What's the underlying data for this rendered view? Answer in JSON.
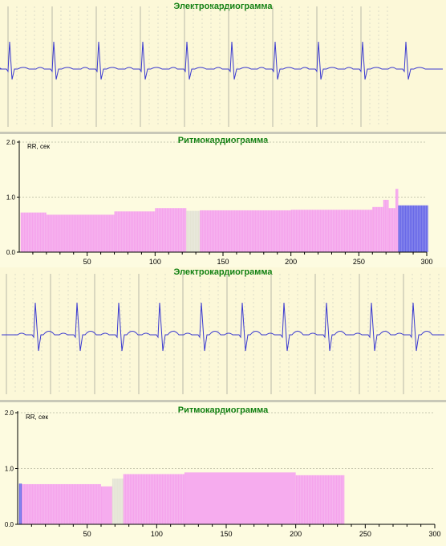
{
  "ecg1": {
    "title": "Электрокардиограмма"
  },
  "rhythm1": {
    "title": "Ритмокардиограмма"
  },
  "ecg2": {
    "title": "Электрокардиограмма"
  },
  "rhythm2": {
    "title": "Ритмокардиограмма"
  },
  "colors": {
    "ecg_trace": "#3a3ad0",
    "bar_normal": "#f5a4ec",
    "bar_artifact": "#e4e4d4",
    "bar_blue": "#6a6ae8",
    "title_green": "#118011"
  },
  "chart_data": [
    {
      "type": "bar",
      "title": "Ритмокардиограмма",
      "ylabel": "RR, сек",
      "ylim": [
        0,
        2.0
      ],
      "xlim": [
        0,
        300
      ],
      "y_ticks": [
        "0.0",
        "1.0",
        "2.0"
      ],
      "x_ticks": [
        "50",
        "100",
        "150",
        "200",
        "250",
        "300"
      ],
      "segments": [
        {
          "from": 1,
          "to": 20,
          "value": 0.72,
          "kind": "normal"
        },
        {
          "from": 20,
          "to": 70,
          "value": 0.68,
          "kind": "normal"
        },
        {
          "from": 70,
          "to": 100,
          "value": 0.74,
          "kind": "normal"
        },
        {
          "from": 100,
          "to": 123,
          "value": 0.8,
          "kind": "normal"
        },
        {
          "from": 123,
          "to": 133,
          "value": 0.75,
          "kind": "artifact"
        },
        {
          "from": 133,
          "to": 200,
          "value": 0.76,
          "kind": "normal"
        },
        {
          "from": 200,
          "to": 260,
          "value": 0.77,
          "kind": "normal"
        },
        {
          "from": 260,
          "to": 268,
          "value": 0.82,
          "kind": "normal"
        },
        {
          "from": 268,
          "to": 272,
          "value": 0.95,
          "kind": "normal"
        },
        {
          "from": 272,
          "to": 277,
          "value": 0.8,
          "kind": "normal"
        },
        {
          "from": 277,
          "to": 279,
          "value": 1.15,
          "kind": "normal"
        },
        {
          "from": 279,
          "to": 301,
          "value": 0.85,
          "kind": "blue"
        }
      ]
    },
    {
      "type": "bar",
      "title": "Ритмокардиограмма",
      "ylabel": "RR, сек",
      "ylim": [
        0,
        2.0
      ],
      "xlim": [
        0,
        300
      ],
      "y_ticks": [
        "0.0",
        "1.0",
        "2.0"
      ],
      "x_ticks": [
        "50",
        "100",
        "150",
        "200",
        "250",
        "300"
      ],
      "segments": [
        {
          "from": 1,
          "to": 3,
          "value": 0.73,
          "kind": "blue"
        },
        {
          "from": 3,
          "to": 60,
          "value": 0.72,
          "kind": "normal"
        },
        {
          "from": 60,
          "to": 68,
          "value": 0.68,
          "kind": "normal"
        },
        {
          "from": 68,
          "to": 76,
          "value": 0.82,
          "kind": "artifact"
        },
        {
          "from": 76,
          "to": 120,
          "value": 0.9,
          "kind": "normal"
        },
        {
          "from": 120,
          "to": 200,
          "value": 0.93,
          "kind": "normal"
        },
        {
          "from": 200,
          "to": 235,
          "value": 0.88,
          "kind": "normal"
        }
      ]
    }
  ]
}
